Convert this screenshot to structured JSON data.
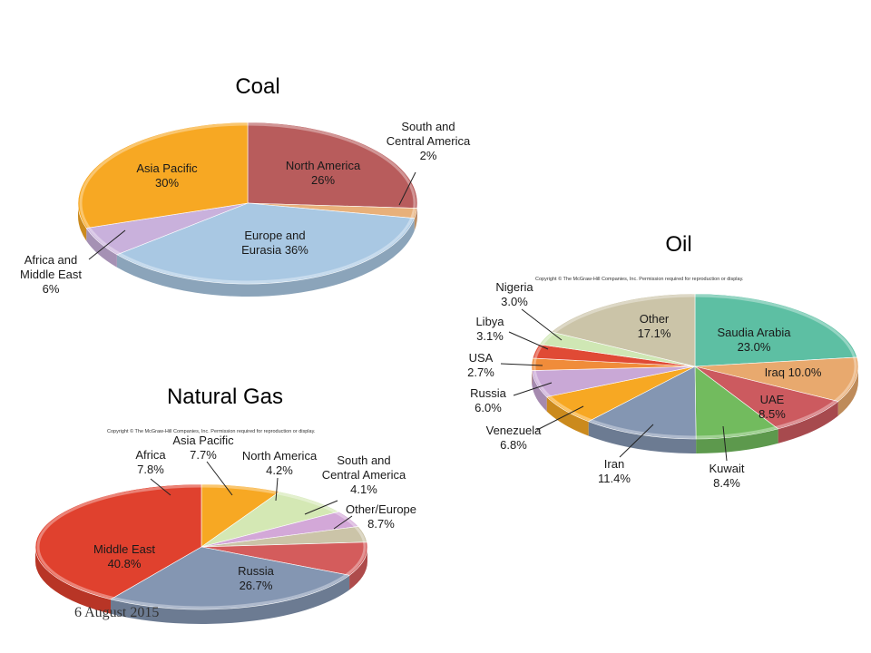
{
  "slide": {
    "date": "6 August 2015"
  },
  "copyright": "Copyright © The McGraw-Hill Companies, Inc. Permission required for reproduction or display.",
  "chart_data": [
    {
      "type": "pie",
      "title": "Coal",
      "slices": [
        {
          "label": "North America",
          "value": 26,
          "value_label": "26%",
          "color": "#b85c5c"
        },
        {
          "label": "South and Central America",
          "value": 2,
          "value_label": "2%",
          "color": "#e8b07a"
        },
        {
          "label": "Europe and Eurasia",
          "value": 36,
          "value_label": "36%",
          "color": "#a9c8e3"
        },
        {
          "label": "Africa and Middle East",
          "value": 6,
          "value_label": "6%",
          "color": "#c9b1dc"
        },
        {
          "label": "Asia Pacific",
          "value": 30,
          "value_label": "30%",
          "color": "#f7a823"
        }
      ]
    },
    {
      "type": "pie",
      "title": "Oil",
      "slices": [
        {
          "label": "Saudia Arabia",
          "value": 23.0,
          "value_label": "23.0%",
          "color": "#5dbfa3"
        },
        {
          "label": "Iraq",
          "value": 10.0,
          "value_label": "10.0%",
          "color": "#e8a96e"
        },
        {
          "label": "UAE",
          "value": 8.5,
          "value_label": "8.5%",
          "color": "#cc5a5f"
        },
        {
          "label": "Kuwait",
          "value": 8.4,
          "value_label": "8.4%",
          "color": "#72bb5e"
        },
        {
          "label": "Iran",
          "value": 11.4,
          "value_label": "11.4%",
          "color": "#8496b2"
        },
        {
          "label": "Venezuela",
          "value": 6.8,
          "value_label": "6.8%",
          "color": "#f7a823"
        },
        {
          "label": "Russia",
          "value": 6.0,
          "value_label": "6.0%",
          "color": "#c9a8d6"
        },
        {
          "label": "USA",
          "value": 2.7,
          "value_label": "2.7%",
          "color": "#f08c3a"
        },
        {
          "label": "Libya",
          "value": 3.1,
          "value_label": "3.1%",
          "color": "#e04a35"
        },
        {
          "label": "Nigeria",
          "value": 3.0,
          "value_label": "3.0%",
          "color": "#cfe7b4"
        },
        {
          "label": "Other",
          "value": 17.1,
          "value_label": "17.1%",
          "color": "#cbc4a8"
        }
      ]
    },
    {
      "type": "pie",
      "title": "Natural Gas",
      "slices": [
        {
          "label": "Africa",
          "value": 7.8,
          "value_label": "7.8%",
          "color": "#f7a823"
        },
        {
          "label": "Asia Pacific",
          "value": 7.7,
          "value_label": "7.7%",
          "color": "#d4e8b4"
        },
        {
          "label": "North America",
          "value": 4.2,
          "value_label": "4.2%",
          "color": "#d3a8d8"
        },
        {
          "label": "South and Central America",
          "value": 4.1,
          "value_label": "4.1%",
          "color": "#cbc4a8"
        },
        {
          "label": "Other/Europe",
          "value": 8.7,
          "value_label": "8.7%",
          "color": "#d45c5c"
        },
        {
          "label": "Russia",
          "value": 26.7,
          "value_label": "26.7%",
          "color": "#8496b2"
        },
        {
          "label": "Middle East",
          "value": 40.8,
          "value_label": "40.8%",
          "color": "#e0412e"
        }
      ]
    }
  ]
}
